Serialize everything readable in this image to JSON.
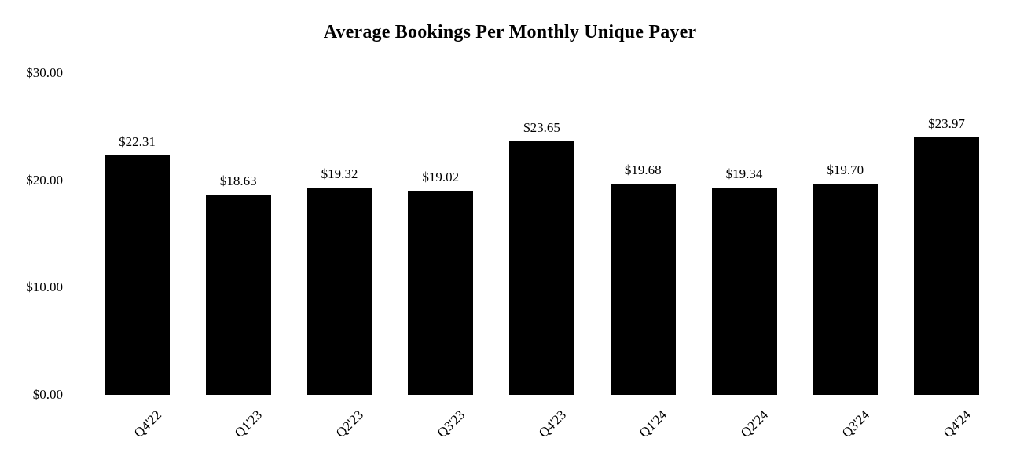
{
  "chart_data": {
    "type": "bar",
    "title": "Average Bookings Per Monthly Unique Payer",
    "categories": [
      "Q4'22",
      "Q1'23",
      "Q2'23",
      "Q3'23",
      "Q4'23",
      "Q1'24",
      "Q2'24",
      "Q3'24",
      "Q4'24"
    ],
    "values": [
      22.31,
      18.63,
      19.32,
      19.02,
      23.65,
      19.68,
      19.34,
      19.7,
      23.97
    ],
    "data_labels": [
      "$22.31",
      "$18.63",
      "$19.32",
      "$19.02",
      "$23.65",
      "$19.68",
      "$19.34",
      "$19.70",
      "$23.97"
    ],
    "y_ticks": [
      {
        "value": 0,
        "label": "$0.00"
      },
      {
        "value": 10,
        "label": "$10.00"
      },
      {
        "value": 20,
        "label": "$20.00"
      },
      {
        "value": 30,
        "label": "$30.00"
      }
    ],
    "ylim": [
      0,
      30
    ],
    "xlabel": "",
    "ylabel": "",
    "grid": false,
    "legend": "none",
    "bar_color": "#000000",
    "text_color": "#000000",
    "background_color": "#ffffff",
    "x_tick_rotation_deg": 45
  }
}
